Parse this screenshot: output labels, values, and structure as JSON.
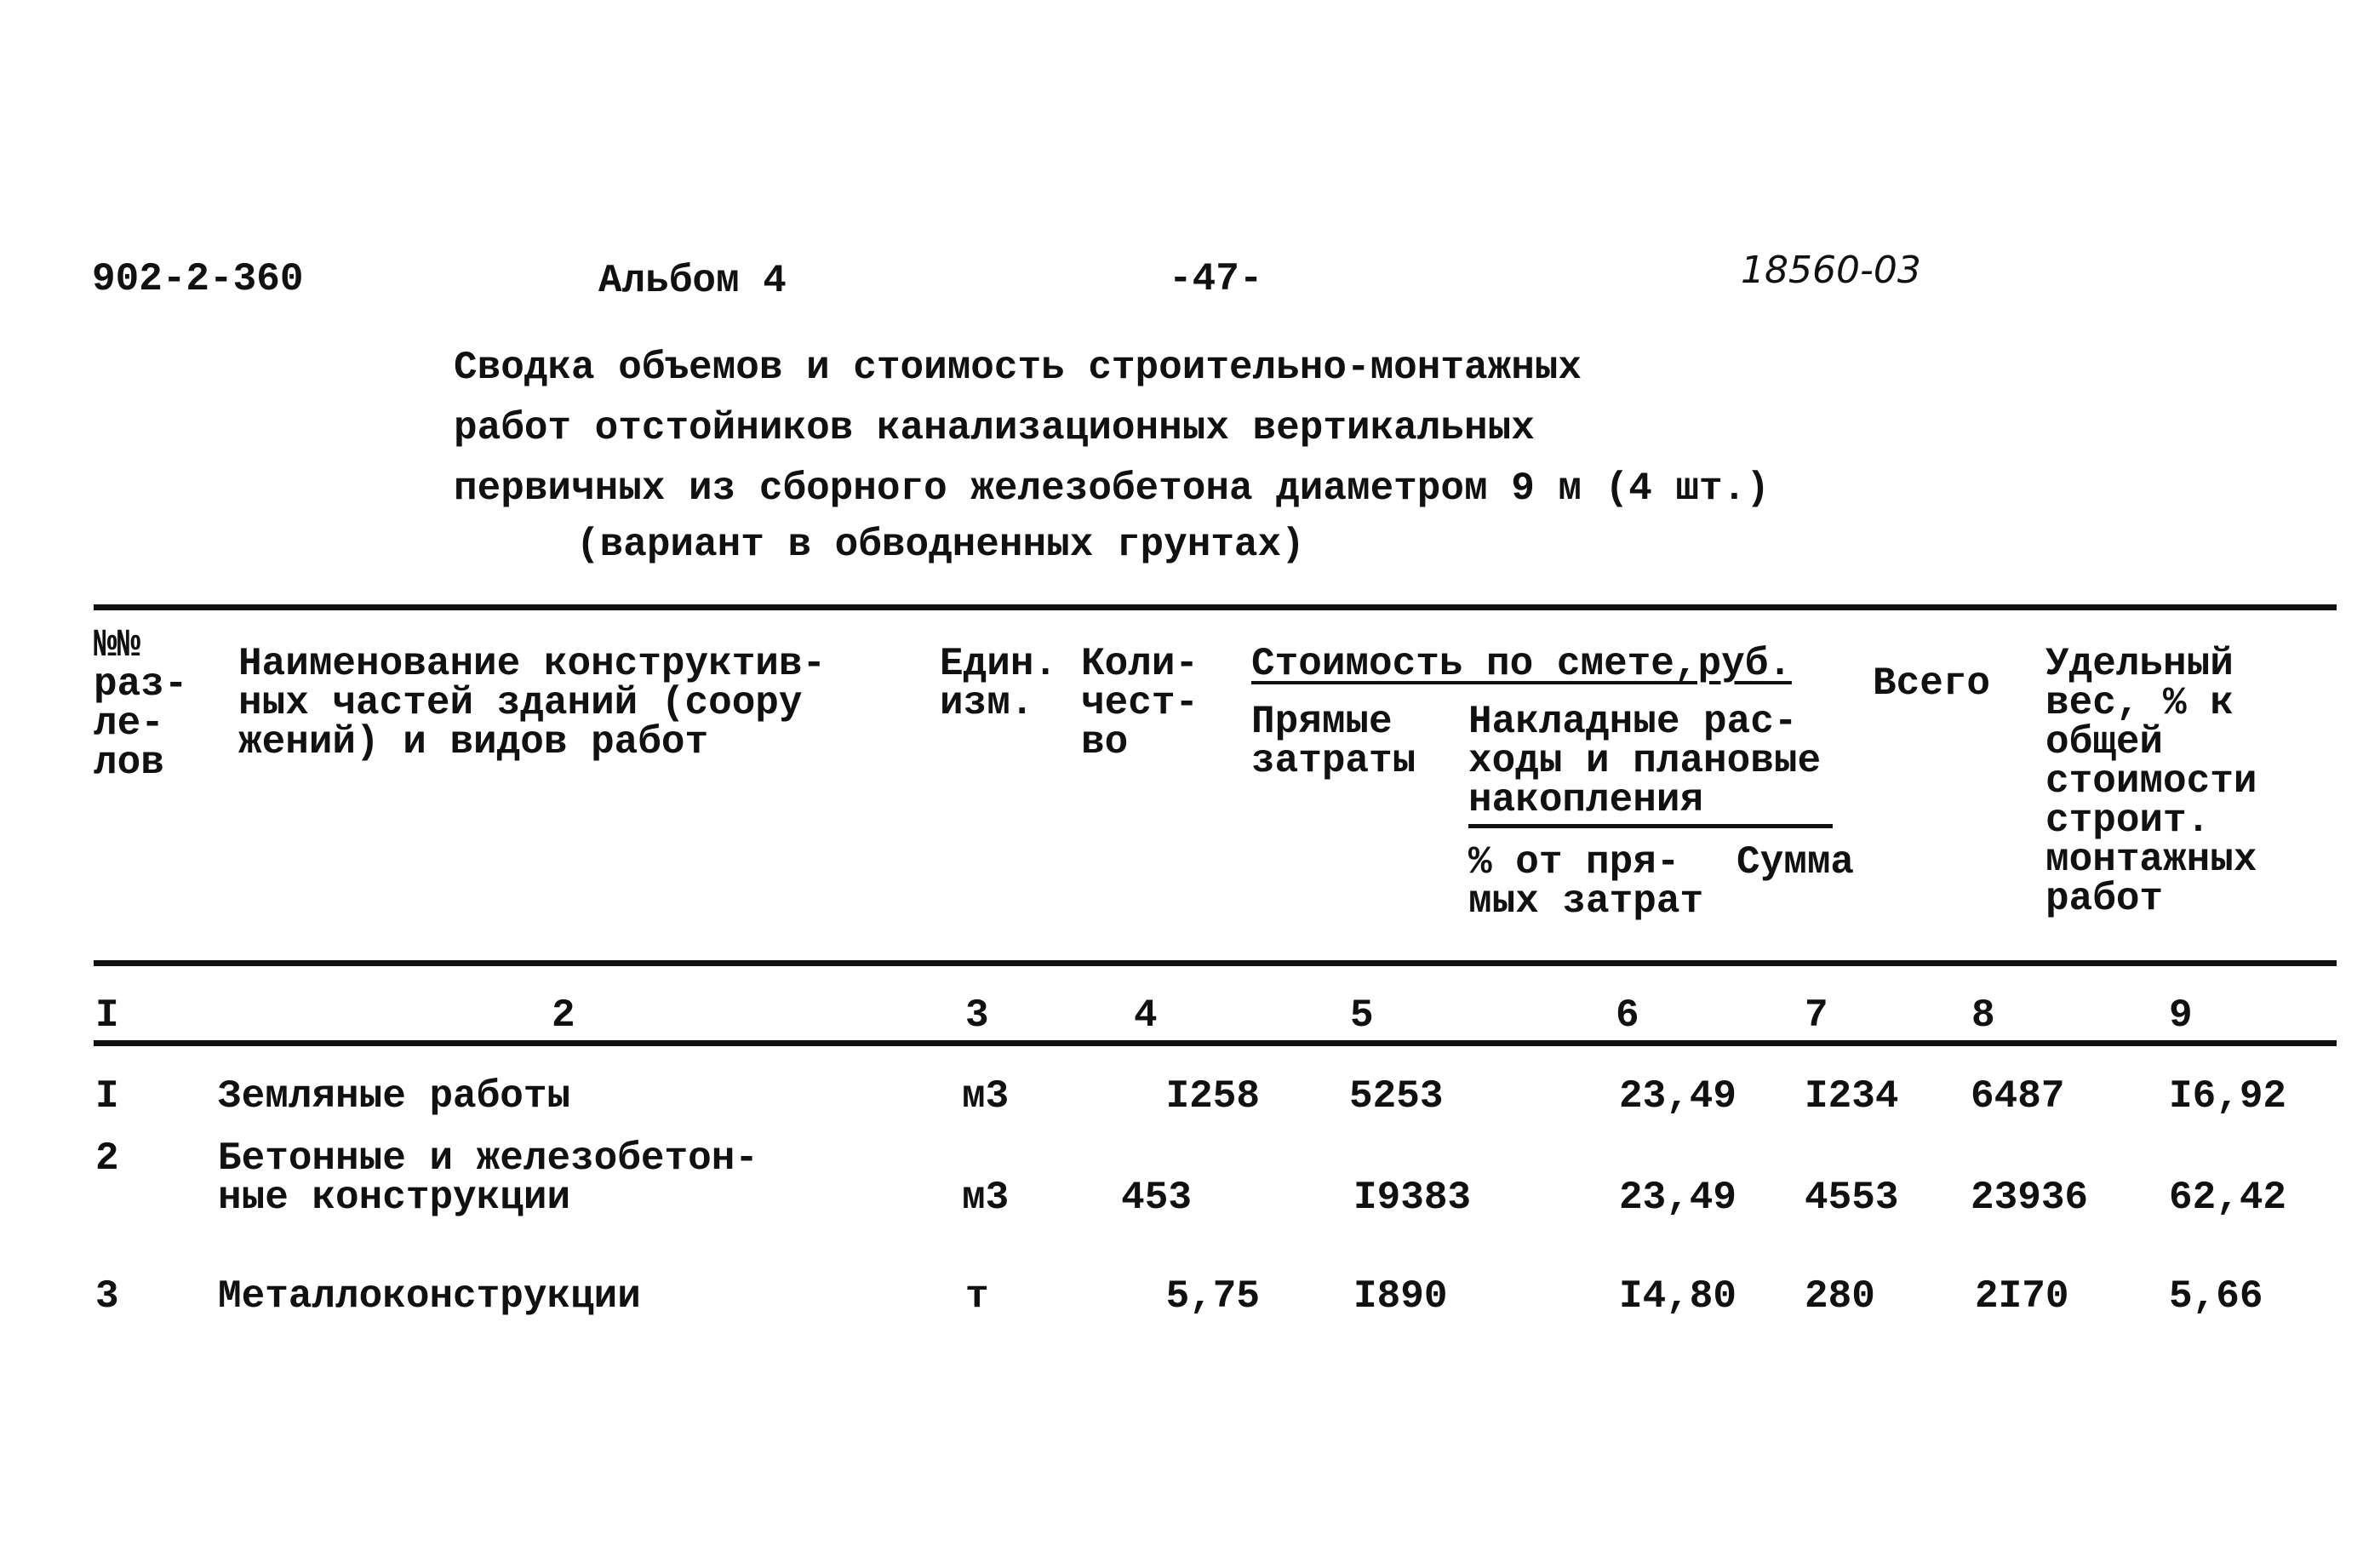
{
  "header": {
    "doc_code": "902-2-360",
    "album": "Альбом 4",
    "page_number": "-47-",
    "inventory_number": "18560-03"
  },
  "title": {
    "lines": [
      "Сводка объемов и стоимость строительно-монтажных",
      "работ отстойников канализационных вертикальных",
      "первичных из сборного железобетона диаметром 9 м (4 шт.)",
      "(вариант в обводненных грунтах)"
    ]
  },
  "table": {
    "headers": {
      "col1": "№№\nраз-\nле-\nлов",
      "col2": "Наименование конструктив-\nных частей зданий (соору\nжений) и видов работ",
      "col3": "Един.\nизм.",
      "col4": "Коли-\nчест-\nво",
      "cost_group": "Стоимость по смете,руб.",
      "col5": "Прямые\nзатраты",
      "overhead_group": "Накладные рас-\nходы и плановые\nнакопления",
      "col6": "% от пря-\nмых затрат",
      "col7": "Сумма",
      "col8": "Всего",
      "col9": "Удельный\nвес, % к\nобщей\nстоимости\nстроит.\nмонтажных\nработ"
    },
    "column_numbers": [
      "I",
      "2",
      "3",
      "4",
      "5",
      "6",
      "7",
      "8",
      "9"
    ],
    "rows": [
      {
        "num": "I",
        "name": "Земляные работы",
        "unit": "м3",
        "qty": "I258",
        "direct": "5253",
        "pct": "23,49",
        "sum": "I234",
        "total": "6487",
        "share": "I6,92"
      },
      {
        "num": "2",
        "name": "Бетонные и железобетон-\nные конструкции",
        "unit": "м3",
        "qty": "453",
        "direct": "I9383",
        "pct": "23,49",
        "sum": "4553",
        "total": "23936",
        "share": "62,42"
      },
      {
        "num": "3",
        "name": "Металлоконструкции",
        "unit": "т",
        "qty": "5,75",
        "direct": "I890",
        "pct": "I4,80",
        "sum": "280",
        "total": "2I70",
        "share": "5,66"
      }
    ]
  }
}
